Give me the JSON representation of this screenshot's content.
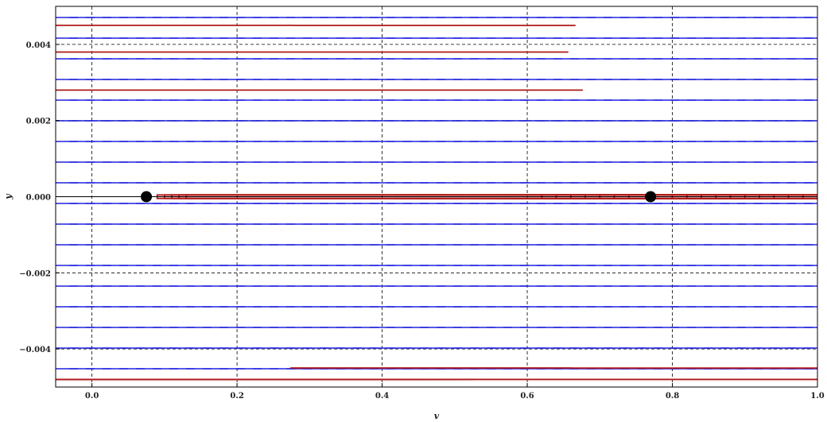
{
  "chart_data": {
    "type": "scatter",
    "subtype": "phase-portrait",
    "title": "",
    "xlabel": "v",
    "ylabel": "y",
    "xlim": [
      -0.05,
      1.0
    ],
    "ylim": [
      -0.005,
      0.005
    ],
    "grid": true,
    "grid_style": "dashed",
    "x_ticks": [
      0.0,
      0.2,
      0.4,
      0.6,
      0.8,
      1.0
    ],
    "x_tick_labels": [
      "0.0",
      "0.2",
      "0.4",
      "0.6",
      "0.8",
      "1.0"
    ],
    "y_ticks": [
      -0.004,
      -0.002,
      0.0,
      0.002,
      0.004
    ],
    "y_tick_labels": [
      "−0.004",
      "−0.002",
      "0.000",
      "0.002",
      "0.004"
    ],
    "colors": {
      "field": "#2222dd",
      "trajectory": "#b01818",
      "point": "#000000",
      "grid": "#000000"
    },
    "fixed_points": [
      {
        "x": 0.075,
        "y": 0.0
      },
      {
        "x": 0.77,
        "y": 0.0
      }
    ]
  }
}
